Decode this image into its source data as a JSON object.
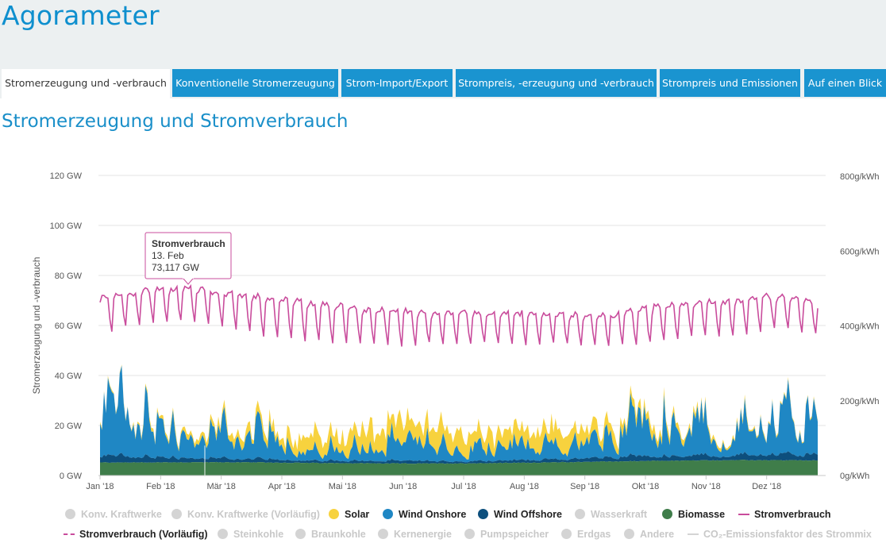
{
  "app": {
    "title": "Agorameter"
  },
  "tabs": [
    {
      "label": "Stromerzeugung und -verbrauch",
      "active": true
    },
    {
      "label": "Konventionelle Stromerzeugung",
      "active": false
    },
    {
      "label": "Strom-Import/Export",
      "active": false
    },
    {
      "label": "Strompreis, -erzeugung und -verbrauch",
      "active": false
    },
    {
      "label": "Strompreis und Emissionen",
      "active": false
    },
    {
      "label": "Auf einen Blick",
      "active": false
    }
  ],
  "page": {
    "section_title": "Stromerzeugung und Stromverbrauch"
  },
  "colors": {
    "accent": "#1a94d0",
    "solar": "#f7d23e",
    "wind_onshore": "#1f87c4",
    "wind_offshore": "#0d4f7d",
    "biomasse": "#3f7d4a",
    "stromverbrauch": "#c94c9c",
    "disabled": "#d4d4d4"
  },
  "chart_data": {
    "type": "area",
    "ylabel": "Stromerzeugung und -verbrauch",
    "y_unit": "GW",
    "ylim": [
      0,
      120
    ],
    "y_ticks": [
      "0 GW",
      "20 GW",
      "40 GW",
      "60 GW",
      "80 GW",
      "100 GW",
      "120 GW"
    ],
    "y2lim": [
      0,
      800
    ],
    "y2_ticks": [
      "0g/kWh",
      "200g/kWh",
      "400g/kWh",
      "600g/kWh",
      "800g/kWh"
    ],
    "x_ticks": [
      "Jan '18",
      "Feb '18",
      "Mär '18",
      "Apr '18",
      "Mai '18",
      "Jun '18",
      "Jul '18",
      "Aug '18",
      "Sep '18",
      "Okt '18",
      "Nov '18",
      "Dez '18"
    ],
    "grid": true,
    "legend_position": "bottom",
    "series": [
      {
        "name": "Biomasse",
        "key": "biomasse",
        "stacked": true,
        "values": [
          5.2,
          5.2,
          5.3,
          5.3,
          5.2,
          5.0,
          4.9,
          4.8,
          4.8,
          4.9,
          5.1,
          5.3,
          5.6,
          5.8,
          6.0,
          6.1,
          6.1,
          6.0
        ]
      },
      {
        "name": "Wind Offshore",
        "key": "wind_offshore",
        "stacked": true,
        "values": [
          2.8,
          2.6,
          1.9,
          1.6,
          1.5,
          1.3,
          1.2,
          1.1,
          1.0,
          1.0,
          1.2,
          1.4,
          1.8,
          2.1,
          2.4,
          2.5,
          2.6,
          2.6
        ]
      },
      {
        "name": "Wind Onshore",
        "key": "wind_onshore",
        "stacked": true,
        "values": [
          22.0,
          19.0,
          9.5,
          11.0,
          11.5,
          6.8,
          6.7,
          7.5,
          7.3,
          6.5,
          7.4,
          6.4,
          9.2,
          15.5,
          17.0,
          13.5,
          17.0,
          16.8
        ]
      },
      {
        "name": "Solar",
        "key": "solar",
        "stacked": true,
        "values": [
          0.6,
          1.0,
          1.8,
          3.0,
          4.2,
          6.5,
          8.2,
          9.0,
          9.3,
          8.8,
          8.0,
          6.8,
          5.0,
          3.4,
          2.0,
          1.2,
          0.8,
          0.6
        ]
      },
      {
        "name": "Stromverbrauch",
        "key": "stromverbrauch",
        "stacked": false,
        "weekly_high": [
          72,
          75,
          76,
          74,
          72,
          70,
          68,
          67,
          66,
          66,
          66,
          65,
          65,
          68,
          70,
          71,
          73,
          70
        ],
        "weekly_low": [
          57,
          61,
          62,
          60,
          55,
          54,
          53,
          52,
          53,
          53,
          52,
          53,
          52,
          53,
          56,
          56,
          59,
          57
        ]
      }
    ],
    "tooltip": {
      "title": "Stromverbrauch",
      "date": "13. Feb",
      "value": "73,117 GW"
    }
  },
  "legend": [
    {
      "label": "Konv. Kraftwerke",
      "enabled": false,
      "symbol": "circle",
      "color": "#d4d4d4"
    },
    {
      "label": "Konv. Kraftwerke (Vorläufig)",
      "enabled": false,
      "symbol": "circle",
      "color": "#d4d4d4"
    },
    {
      "label": "Solar",
      "enabled": true,
      "symbol": "circle",
      "color": "#f7d23e"
    },
    {
      "label": "Wind Onshore",
      "enabled": true,
      "symbol": "circle",
      "color": "#1f87c4"
    },
    {
      "label": "Wind Offshore",
      "enabled": true,
      "symbol": "circle",
      "color": "#0d4f7d"
    },
    {
      "label": "Wasserkraft",
      "enabled": false,
      "symbol": "circle",
      "color": "#d4d4d4"
    },
    {
      "label": "Biomasse",
      "enabled": true,
      "symbol": "circle",
      "color": "#3f7d4a"
    },
    {
      "label": "Stromverbrauch",
      "enabled": true,
      "symbol": "line",
      "color": "#c94c9c"
    },
    {
      "label": "Stromverbrauch (Vorläufig)",
      "enabled": true,
      "symbol": "dash",
      "color": "#c94c9c"
    },
    {
      "label": "Steinkohle",
      "enabled": false,
      "symbol": "circle",
      "color": "#d4d4d4"
    },
    {
      "label": "Braunkohle",
      "enabled": false,
      "symbol": "circle",
      "color": "#d4d4d4"
    },
    {
      "label": "Kernenergie",
      "enabled": false,
      "symbol": "circle",
      "color": "#d4d4d4"
    },
    {
      "label": "Pumpspeicher",
      "enabled": false,
      "symbol": "circle",
      "color": "#d4d4d4"
    },
    {
      "label": "Erdgas",
      "enabled": false,
      "symbol": "circle",
      "color": "#d4d4d4"
    },
    {
      "label": "Andere",
      "enabled": false,
      "symbol": "circle",
      "color": "#d4d4d4"
    },
    {
      "label": "CO₂-Emissionsfaktor des Strommix",
      "enabled": false,
      "symbol": "line",
      "color": "#d4d4d4"
    }
  ]
}
